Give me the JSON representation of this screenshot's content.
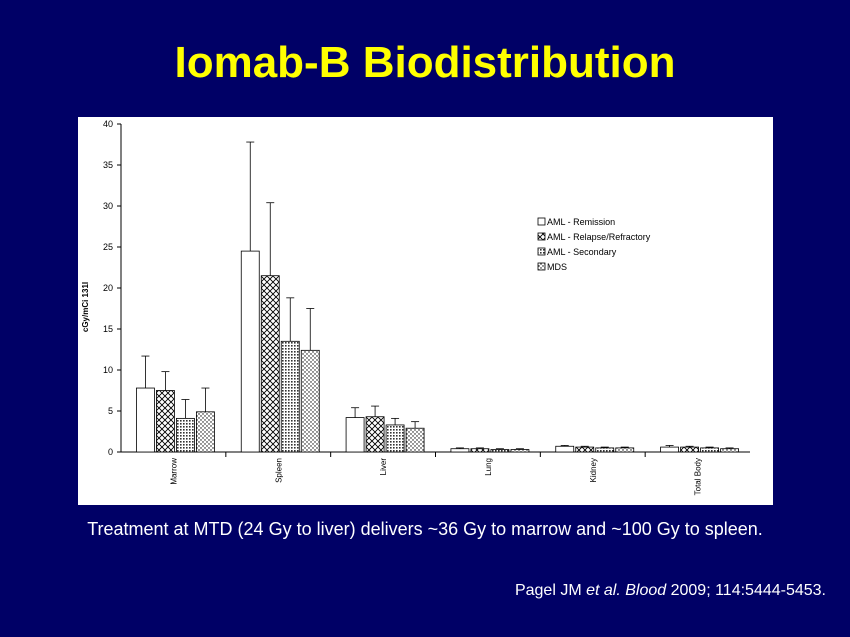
{
  "slide": {
    "title": "Iomab-B Biodistribution",
    "caption": "Treatment at MTD (24 Gy to liver) delivers ~36 Gy to marrow and ~100 Gy to spleen.",
    "citation": {
      "author": "Pagel JM ",
      "etal": "et al.",
      "journal": "Blood",
      "rest": " 2009; 114:5444-5453."
    }
  },
  "colors": {
    "background": "#000066",
    "title": "#ffff00",
    "text": "#ffffff",
    "panel": "#ffffff"
  },
  "chart_data": {
    "type": "bar",
    "ylabel": "cGy/mCi 131I",
    "ylim": [
      0,
      40
    ],
    "yticks": [
      0,
      5,
      10,
      15,
      20,
      25,
      30,
      35,
      40
    ],
    "grid": false,
    "legend_position": "top-right",
    "categories": [
      "Marrow",
      "Spleen",
      "Liver",
      "Lung",
      "Kidney",
      "Total Body"
    ],
    "series": [
      {
        "name": "AML - Remission",
        "pattern": "plain",
        "values": [
          7.8,
          24.5,
          4.2,
          0.4,
          0.7,
          0.6
        ],
        "errors": [
          3.9,
          13.3,
          1.2,
          0.1,
          0.1,
          0.2
        ]
      },
      {
        "name": "AML - Relapse/Refractory",
        "pattern": "crosshatch",
        "values": [
          7.5,
          21.5,
          4.3,
          0.4,
          0.6,
          0.6
        ],
        "errors": [
          2.3,
          8.9,
          1.3,
          0.1,
          0.1,
          0.1
        ]
      },
      {
        "name": "AML - Secondary",
        "pattern": "dense",
        "values": [
          4.1,
          13.5,
          3.3,
          0.3,
          0.5,
          0.5
        ],
        "errors": [
          2.3,
          5.3,
          0.8,
          0.1,
          0.1,
          0.1
        ]
      },
      {
        "name": "MDS",
        "pattern": "dots",
        "values": [
          4.9,
          12.4,
          2.9,
          0.3,
          0.5,
          0.4
        ],
        "errors": [
          2.9,
          5.1,
          0.8,
          0.1,
          0.1,
          0.1
        ]
      }
    ]
  }
}
